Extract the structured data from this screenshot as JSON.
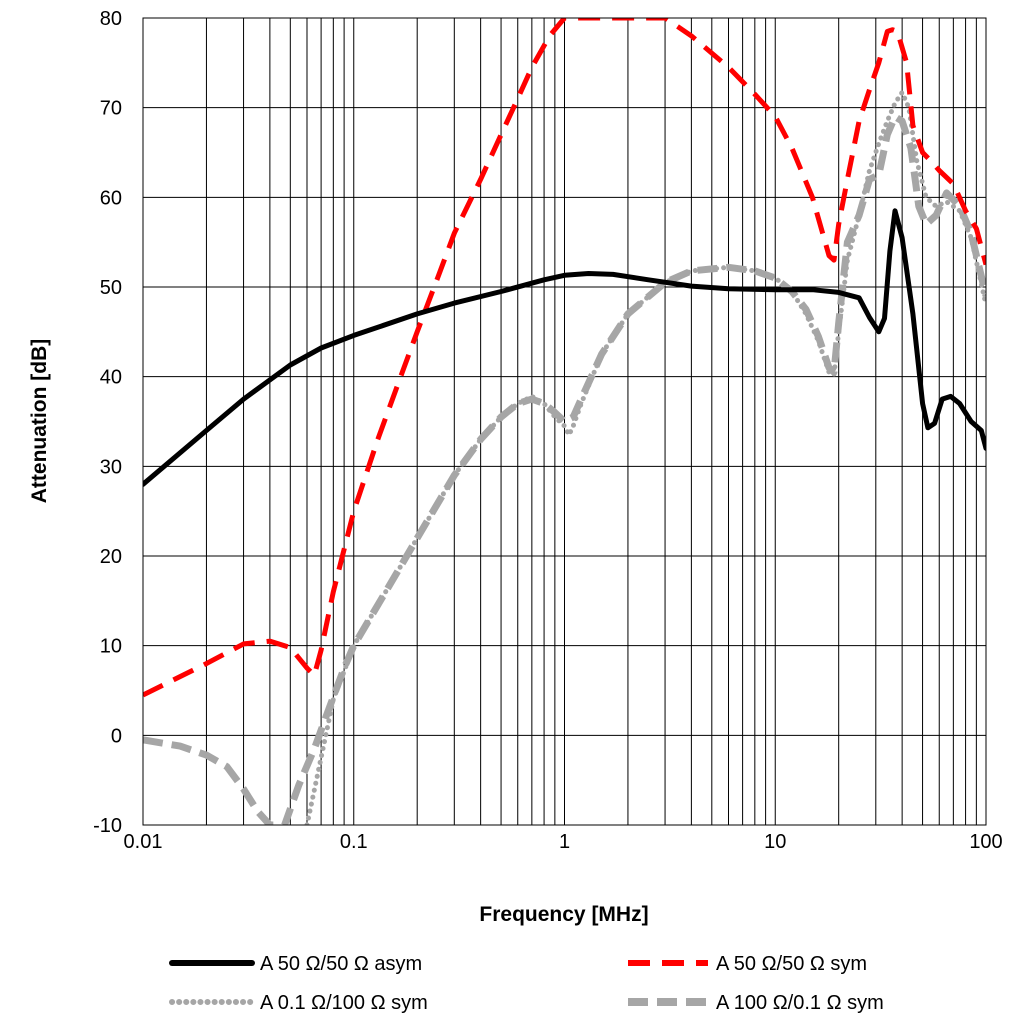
{
  "chart_data": {
    "type": "line",
    "title": "",
    "xlabel": "Frequency [MHz]",
    "ylabel": "Attenuation [dB]",
    "x_scale": "log",
    "xlim": [
      0.01,
      100
    ],
    "ylim": [
      -10,
      80
    ],
    "x_ticks": [
      {
        "value": 0.01,
        "label": "0.01"
      },
      {
        "value": 0.1,
        "label": "0.1"
      },
      {
        "value": 1,
        "label": "1"
      },
      {
        "value": 10,
        "label": "10"
      },
      {
        "value": 100,
        "label": "100"
      }
    ],
    "y_ticks": [
      {
        "value": -10,
        "label": "-10"
      },
      {
        "value": 0,
        "label": "0"
      },
      {
        "value": 10,
        "label": "10"
      },
      {
        "value": 20,
        "label": "20"
      },
      {
        "value": 30,
        "label": "30"
      },
      {
        "value": 40,
        "label": "40"
      },
      {
        "value": 50,
        "label": "50"
      },
      {
        "value": 60,
        "label": "60"
      },
      {
        "value": 70,
        "label": "70"
      },
      {
        "value": 80,
        "label": "80"
      }
    ],
    "grid": true,
    "legend_position": "bottom",
    "series": [
      {
        "name": "A 50 Ω/50 Ω asym",
        "color": "#000000",
        "style": "solid",
        "points": [
          [
            0.01,
            28
          ],
          [
            0.02,
            34
          ],
          [
            0.03,
            37.5
          ],
          [
            0.05,
            41.3
          ],
          [
            0.07,
            43.2
          ],
          [
            0.1,
            44.6
          ],
          [
            0.2,
            47
          ],
          [
            0.3,
            48.2
          ],
          [
            0.5,
            49.5
          ],
          [
            0.8,
            50.8
          ],
          [
            1,
            51.3
          ],
          [
            1.3,
            51.5
          ],
          [
            1.7,
            51.4
          ],
          [
            2.5,
            50.8
          ],
          [
            4,
            50.1
          ],
          [
            6,
            49.8
          ],
          [
            10,
            49.7
          ],
          [
            15,
            49.7
          ],
          [
            20,
            49.4
          ],
          [
            25,
            48.8
          ],
          [
            28,
            46.6
          ],
          [
            31,
            45
          ],
          [
            33,
            46.5
          ],
          [
            35,
            54
          ],
          [
            37,
            58.5
          ],
          [
            40,
            55.5
          ],
          [
            45,
            47
          ],
          [
            50,
            37
          ],
          [
            53,
            34.3
          ],
          [
            57,
            34.8
          ],
          [
            62,
            37.5
          ],
          [
            68,
            37.8
          ],
          [
            75,
            37
          ],
          [
            85,
            35
          ],
          [
            95,
            34
          ],
          [
            100,
            32
          ]
        ]
      },
      {
        "name": "A 50 Ω/50 Ω sym",
        "color": "#ff0000",
        "style": "dashed",
        "points": [
          [
            0.01,
            4.5
          ],
          [
            0.02,
            8
          ],
          [
            0.03,
            10.2
          ],
          [
            0.04,
            10.5
          ],
          [
            0.05,
            9.8
          ],
          [
            0.06,
            7.5
          ],
          [
            0.065,
            6.7
          ],
          [
            0.07,
            9.5
          ],
          [
            0.08,
            16
          ],
          [
            0.1,
            25
          ],
          [
            0.13,
            33
          ],
          [
            0.17,
            40.5
          ],
          [
            0.2,
            45
          ],
          [
            0.25,
            51
          ],
          [
            0.3,
            56
          ],
          [
            0.4,
            62
          ],
          [
            0.5,
            67
          ],
          [
            0.6,
            71
          ],
          [
            0.7,
            74.5
          ],
          [
            0.85,
            78
          ],
          [
            1,
            80
          ],
          [
            3,
            80
          ],
          [
            4,
            78
          ],
          [
            6,
            74.5
          ],
          [
            8,
            71.5
          ],
          [
            10,
            69
          ],
          [
            12,
            65.5
          ],
          [
            15,
            60
          ],
          [
            18,
            53.5
          ],
          [
            19,
            53
          ],
          [
            20,
            57
          ],
          [
            22,
            62
          ],
          [
            25,
            68.5
          ],
          [
            28,
            72
          ],
          [
            31,
            75
          ],
          [
            34,
            78.5
          ],
          [
            36,
            78.7
          ],
          [
            38,
            78.5
          ],
          [
            42,
            75
          ],
          [
            45,
            68
          ],
          [
            50,
            65
          ],
          [
            55,
            64
          ],
          [
            60,
            63
          ],
          [
            70,
            61.5
          ],
          [
            80,
            58.5
          ],
          [
            90,
            56.5
          ],
          [
            100,
            52.5
          ]
        ]
      },
      {
        "name": "A 0.1 Ω/100 Ω sym",
        "color": "#a6a6a6",
        "style": "dotted",
        "points": [
          [
            0.06,
            -10
          ],
          [
            0.08,
            4
          ],
          [
            0.1,
            10
          ],
          [
            0.15,
            17
          ],
          [
            0.2,
            22
          ],
          [
            0.3,
            29
          ],
          [
            0.4,
            33
          ],
          [
            0.5,
            35.5
          ],
          [
            0.6,
            37
          ],
          [
            0.7,
            37.8
          ],
          [
            0.8,
            37
          ],
          [
            0.9,
            35.5
          ],
          [
            1,
            34.5
          ],
          [
            1.05,
            33.5
          ],
          [
            1.1,
            34.5
          ],
          [
            1.2,
            37
          ],
          [
            1.5,
            42.5
          ],
          [
            2,
            47
          ],
          [
            3,
            50.5
          ],
          [
            4,
            51.8
          ],
          [
            6,
            52.2
          ],
          [
            8,
            51.8
          ],
          [
            10,
            51
          ],
          [
            12,
            49.5
          ],
          [
            14,
            47
          ],
          [
            16,
            44
          ],
          [
            18,
            40.5
          ],
          [
            19,
            40.2
          ],
          [
            20,
            45
          ],
          [
            22,
            53
          ],
          [
            25,
            58
          ],
          [
            28,
            63
          ],
          [
            31,
            66
          ],
          [
            34,
            68.5
          ],
          [
            37,
            70.5
          ],
          [
            40,
            71.7
          ],
          [
            43,
            70
          ],
          [
            47,
            64
          ],
          [
            52,
            60
          ],
          [
            58,
            59
          ],
          [
            65,
            59.5
          ],
          [
            75,
            58.5
          ],
          [
            85,
            55.5
          ],
          [
            100,
            48
          ]
        ]
      },
      {
        "name": "A 100 Ω/0.1 Ω sym",
        "color": "#a6a6a6",
        "style": "dashed",
        "points": [
          [
            0.01,
            -0.5
          ],
          [
            0.015,
            -1.2
          ],
          [
            0.02,
            -2.2
          ],
          [
            0.025,
            -3.5
          ],
          [
            0.03,
            -6
          ],
          [
            0.035,
            -8.5
          ],
          [
            0.04,
            -10
          ],
          [
            0.047,
            -10
          ],
          [
            0.055,
            -5.5
          ],
          [
            0.065,
            -1.5
          ],
          [
            0.075,
            2.5
          ],
          [
            0.09,
            7.5
          ],
          [
            0.1,
            10
          ],
          [
            0.15,
            17
          ],
          [
            0.2,
            22
          ],
          [
            0.3,
            29
          ],
          [
            0.4,
            33
          ],
          [
            0.5,
            35.5
          ],
          [
            0.6,
            37
          ],
          [
            0.7,
            37.5
          ],
          [
            0.8,
            37
          ],
          [
            0.9,
            36
          ],
          [
            1,
            35
          ],
          [
            1.1,
            35.5
          ],
          [
            1.2,
            37.5
          ],
          [
            1.5,
            42.5
          ],
          [
            2,
            47
          ],
          [
            3,
            50.5
          ],
          [
            4,
            51.8
          ],
          [
            6,
            52.2
          ],
          [
            8,
            51.8
          ],
          [
            10,
            51
          ],
          [
            12,
            49.5
          ],
          [
            14,
            47.5
          ],
          [
            16,
            44.5
          ],
          [
            18,
            41
          ],
          [
            19,
            40.5
          ],
          [
            20,
            46
          ],
          [
            22,
            55
          ],
          [
            25,
            58
          ],
          [
            28,
            62
          ],
          [
            31,
            62.5
          ],
          [
            34,
            67
          ],
          [
            37,
            69
          ],
          [
            40,
            68.5
          ],
          [
            44,
            65.5
          ],
          [
            48,
            59
          ],
          [
            52,
            57
          ],
          [
            58,
            58
          ],
          [
            65,
            60.5
          ],
          [
            75,
            59
          ],
          [
            85,
            56
          ],
          [
            100,
            49
          ]
        ]
      }
    ]
  }
}
